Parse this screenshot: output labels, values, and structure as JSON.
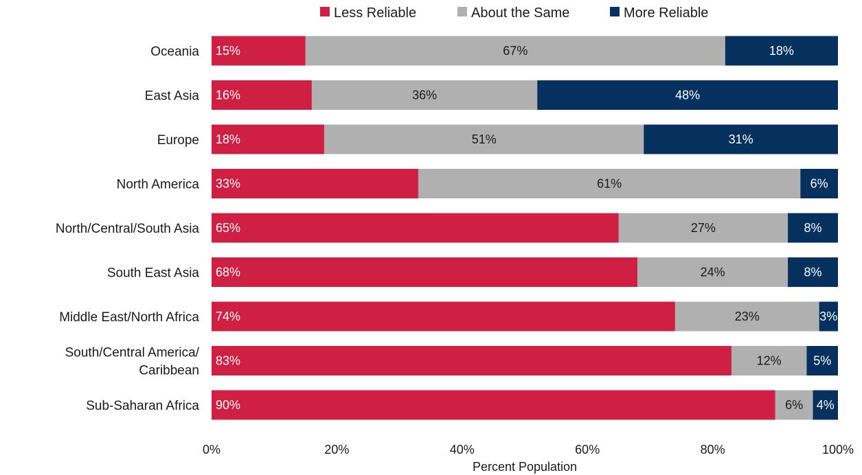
{
  "chart_data": {
    "type": "bar",
    "orientation": "horizontal",
    "stacked": "percent",
    "categories": [
      "Oceania",
      "East Asia",
      "Europe",
      "North America",
      "North/Central/South Asia",
      "South East Asia",
      "Middle East/North Africa",
      "South/Central America/ Caribbean",
      "Sub-Saharan Africa"
    ],
    "category_lines": [
      [
        "Oceania"
      ],
      [
        "East Asia"
      ],
      [
        "Europe"
      ],
      [
        "North America"
      ],
      [
        "North/Central/South Asia"
      ],
      [
        "South East Asia"
      ],
      [
        "Middle East/North Africa"
      ],
      [
        "South/Central America/",
        "Caribbean"
      ],
      [
        "Sub-Saharan Africa"
      ]
    ],
    "series": [
      {
        "name": "Less Reliable",
        "color": "#cf1f42",
        "label_color": "#ffffff",
        "values": [
          15,
          16,
          18,
          33,
          65,
          68,
          74,
          83,
          90
        ]
      },
      {
        "name": "About the Same",
        "color": "#b0b0b0",
        "label_color": "#1a1a1a",
        "values": [
          67,
          36,
          51,
          61,
          27,
          24,
          23,
          12,
          6
        ]
      },
      {
        "name": "More Reliable",
        "color": "#06305e",
        "label_color": "#ffffff",
        "values": [
          18,
          48,
          31,
          6,
          8,
          8,
          3,
          5,
          4
        ]
      }
    ],
    "title": "",
    "xlabel": "Percent Population",
    "ylabel": "",
    "xlim": [
      0,
      100
    ],
    "x_ticks": [
      0,
      20,
      40,
      60,
      80,
      100
    ],
    "x_tick_labels": [
      "0%",
      "20%",
      "40%",
      "60%",
      "80%",
      "100%"
    ],
    "value_suffix": "%",
    "grid": false,
    "legend_position": "top"
  }
}
